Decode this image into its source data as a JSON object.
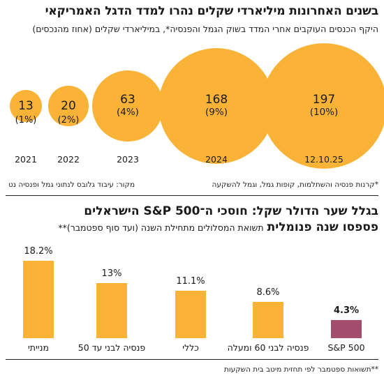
{
  "section1": {
    "title": "בשנים האחרונות מיליארדי שקלים נהרו למדד הדגל האמריקאי",
    "subtitle": "היקף הכנסים העוקבים אחרי המדד בשוק הגמל והפנסיה*, במיליארדי שקלים (אחוז מהנכסים)",
    "footnote": "*קרנות פנסיה והשתלמות, קופות גמל, וגמל להשקעה",
    "source": "מקור: עיבוד גלובס לנתוני גמל ופנסיה נט"
  },
  "section2": {
    "title": "בגלל שער הדולר שקל: חוסכי ה־S&P 500 הישראלים",
    "subtitle_bold": "פספסו שנה פנומלית",
    "subtitle": "תשואת המסלולים מתחילת השנה (ועד סוף ספטמבר)**",
    "footnote": "**תשואות ספטמבר לפי תחזית מיטב בית השקעות"
  },
  "colors": {
    "accent": "#fbb337",
    "sp500": "#a24d6b",
    "text": "#1a1a1a"
  },
  "chart_data": [
    {
      "type": "bubble",
      "categories": [
        "2021",
        "2022",
        "2023",
        "2024",
        "12.10.25"
      ],
      "values": [
        13,
        20,
        63,
        168,
        197
      ],
      "value_labels": [
        "13",
        "20",
        "63",
        "168",
        "197"
      ],
      "percent_labels": [
        "(1%)",
        "(2%)",
        "(4%)",
        "(9%)",
        "(10%)"
      ]
    },
    {
      "type": "bar",
      "categories": [
        "מנייתי",
        "פנסיה לבני עד 50",
        "כללי",
        "פנסיה לבני 60 ומעלה",
        "S&P 500"
      ],
      "values": [
        18.2,
        13,
        11.1,
        8.6,
        4.3
      ],
      "value_labels": [
        "18.2%",
        "13%",
        "11.1%",
        "8.6%",
        "4.3%"
      ],
      "highlight": "S&P 500"
    }
  ]
}
